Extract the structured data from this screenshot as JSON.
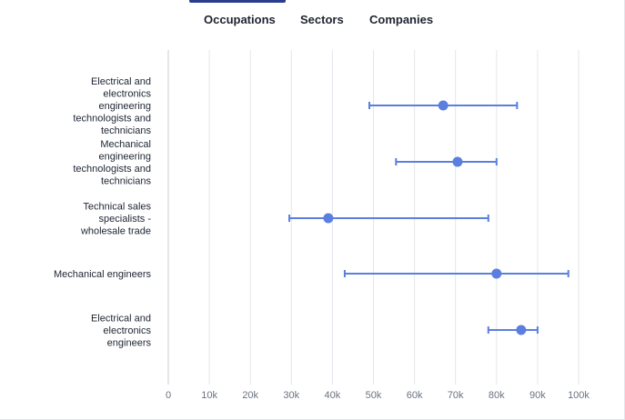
{
  "tabs": [
    {
      "label": "Occupations",
      "active": true
    },
    {
      "label": "Sectors",
      "active": false
    },
    {
      "label": "Companies",
      "active": false
    }
  ],
  "colors": {
    "accent": "#2a3d8f",
    "series": "#5b7fe0",
    "grid": "#e3e6eb"
  },
  "chart_data": {
    "type": "scatter",
    "title": "",
    "xlabel": "",
    "ylabel": "",
    "xlim": [
      0,
      100000
    ],
    "xticks": [
      "0",
      "10k",
      "20k",
      "30k",
      "40k",
      "50k",
      "60k",
      "70k",
      "80k",
      "90k",
      "100k"
    ],
    "grid": true,
    "categories": [
      [
        "Electrical and",
        "electronics",
        "engineering",
        "technologists and",
        "technicians"
      ],
      [
        "Mechanical",
        "engineering",
        "technologists and",
        "technicians"
      ],
      [
        "Technical sales",
        "specialists -",
        "wholesale trade"
      ],
      [
        "Mechanical engineers"
      ],
      [
        "Electrical and",
        "electronics",
        "engineers"
      ]
    ],
    "series": [
      {
        "points": [
          {
            "low": 49000,
            "value": 67000,
            "high": 85000
          },
          {
            "low": 55500,
            "value": 70500,
            "high": 80000
          },
          {
            "low": 29500,
            "value": 39000,
            "high": 78000
          },
          {
            "low": 43000,
            "value": 80000,
            "high": 97500
          },
          {
            "low": 78000,
            "value": 86000,
            "high": 90000
          }
        ]
      }
    ]
  }
}
